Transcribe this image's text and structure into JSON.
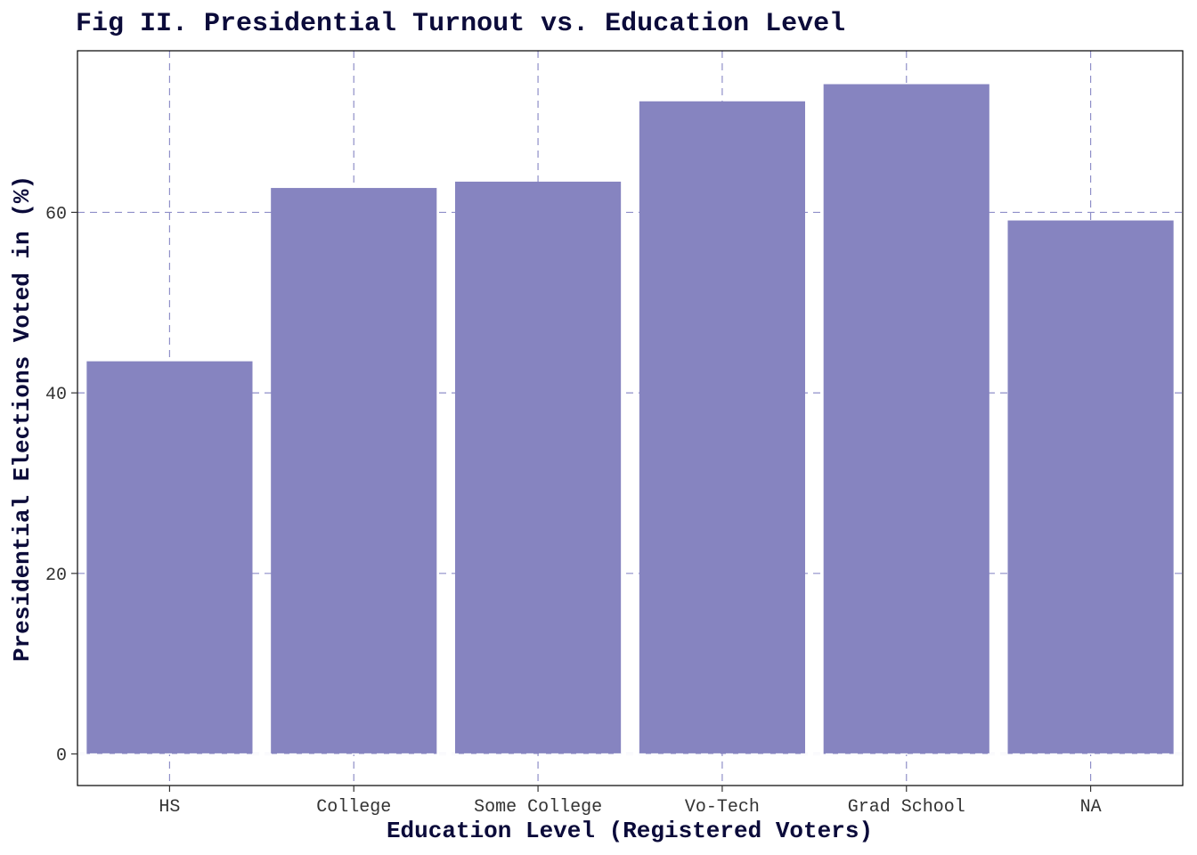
{
  "chart_data": {
    "type": "bar",
    "title": "Fig II. Presidential Turnout vs. Education Level",
    "xlabel": "Education Level (Registered Voters)",
    "ylabel": "Presidential Elections Voted in (%)",
    "categories": [
      "HS",
      "College",
      "Some College",
      "Vo-Tech",
      "Grad School",
      "NA"
    ],
    "values": [
      43.5,
      62.7,
      63.4,
      72.3,
      74.2,
      59.1
    ],
    "ylim": [
      -3.5,
      77.9
    ],
    "yticks": [
      0,
      20,
      40,
      60
    ],
    "grid": true,
    "bar_color": "#8684c0",
    "grid_color": "#8f8fc8",
    "text_color": "#0b0b3a"
  }
}
